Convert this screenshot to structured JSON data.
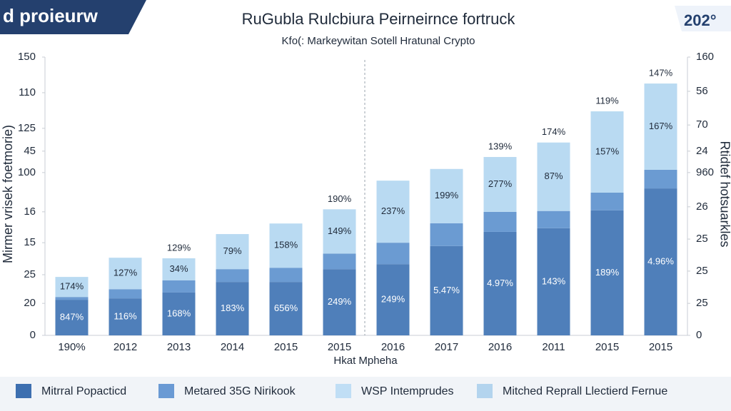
{
  "header": {
    "banner": "d proieurw",
    "badge": "202°"
  },
  "chart_data": {
    "type": "stacked_bar",
    "title": "RuGubla Rulcbiura Peirneirnce fortruck",
    "subtitle": "Kfo(: Markeywitan Sotell Hratunal Crypto",
    "y_label": "Mirmer vrisek foetmorie)",
    "y2_label": "Rtidtef hotsuarkles",
    "x_label": "Hkat Mpheha",
    "categories": [
      "190%",
      "2012",
      "2013",
      "2014",
      "2015",
      "2015",
      "2016",
      "2017",
      "2016",
      "2011",
      "2015",
      "2015"
    ],
    "ylim": [
      0,
      100
    ],
    "yticks": [
      {
        "value": 100,
        "label": "150"
      },
      {
        "value": 87.2,
        "label": "110"
      },
      {
        "value": 74.4,
        "label": "125"
      },
      {
        "value": 66.2,
        "label": "45"
      },
      {
        "value": 58.5,
        "label": "100"
      },
      {
        "value": 44.4,
        "label": "16"
      },
      {
        "value": 33.3,
        "label": "15"
      },
      {
        "value": 21.8,
        "label": "25"
      },
      {
        "value": 11.5,
        "label": "20"
      },
      0
    ],
    "y2lim": [
      0,
      100
    ],
    "y2ticks": [
      {
        "value": 100,
        "label": "160"
      },
      {
        "value": 87.7,
        "label": "56"
      },
      {
        "value": 75.6,
        "label": "70"
      },
      {
        "value": 66.2,
        "label": "24"
      },
      {
        "value": 58.5,
        "label": "960"
      },
      {
        "value": 46.2,
        "label": "26"
      },
      {
        "value": 34.6,
        "label": "25"
      },
      {
        "value": 23.1,
        "label": "25"
      },
      {
        "value": 11.5,
        "label": "25"
      },
      0
    ],
    "series": [
      {
        "color": "#4f7fba",
        "values": [
          12.8,
          13.3,
          15.4,
          19.2,
          19.2,
          23.8,
          25.6,
          32.1,
          37.2,
          38.5,
          44.9,
          52.8
        ],
        "annotations": [
          "847%",
          "116%",
          "168%",
          "183%",
          "656%",
          "249%",
          "249%",
          "5.47%",
          "4.97%",
          "143%",
          "189%",
          "4.96%"
        ]
      },
      {
        "color": "#6b9bd2",
        "values": [
          1,
          3.3,
          4.4,
          4.6,
          5.1,
          5.6,
          7.7,
          8.2,
          7.2,
          6.2,
          6.4,
          6.7
        ]
      },
      {
        "color": "#b9daf2",
        "values": [
          7.2,
          11.3,
          7.9,
          12.6,
          15.9,
          15.9,
          22.3,
          19.5,
          19.7,
          24.6,
          29.2,
          31.0
        ],
        "annotations": [
          "174%",
          "127%",
          "34%",
          "79%",
          "158%",
          "149%",
          "237%",
          "199%",
          "277%",
          "87%",
          "157%",
          "167%"
        ]
      }
    ],
    "top_annotations": [
      null,
      null,
      "129%",
      null,
      null,
      "190%",
      null,
      null,
      "139%",
      "174%",
      "119%",
      "147%"
    ],
    "legend": [
      {
        "label": "Mitrral Popacticd",
        "color": "#3d6fb0"
      },
      {
        "label": "Metared 35G Nirikook",
        "color": "#6a9ad4"
      },
      {
        "label": "WSP Intemprudes",
        "color": "#c0def5"
      },
      {
        "label": "Mitched Reprall Llectierd Fernue",
        "color": "#b3d4ee"
      }
    ],
    "grid": false
  }
}
